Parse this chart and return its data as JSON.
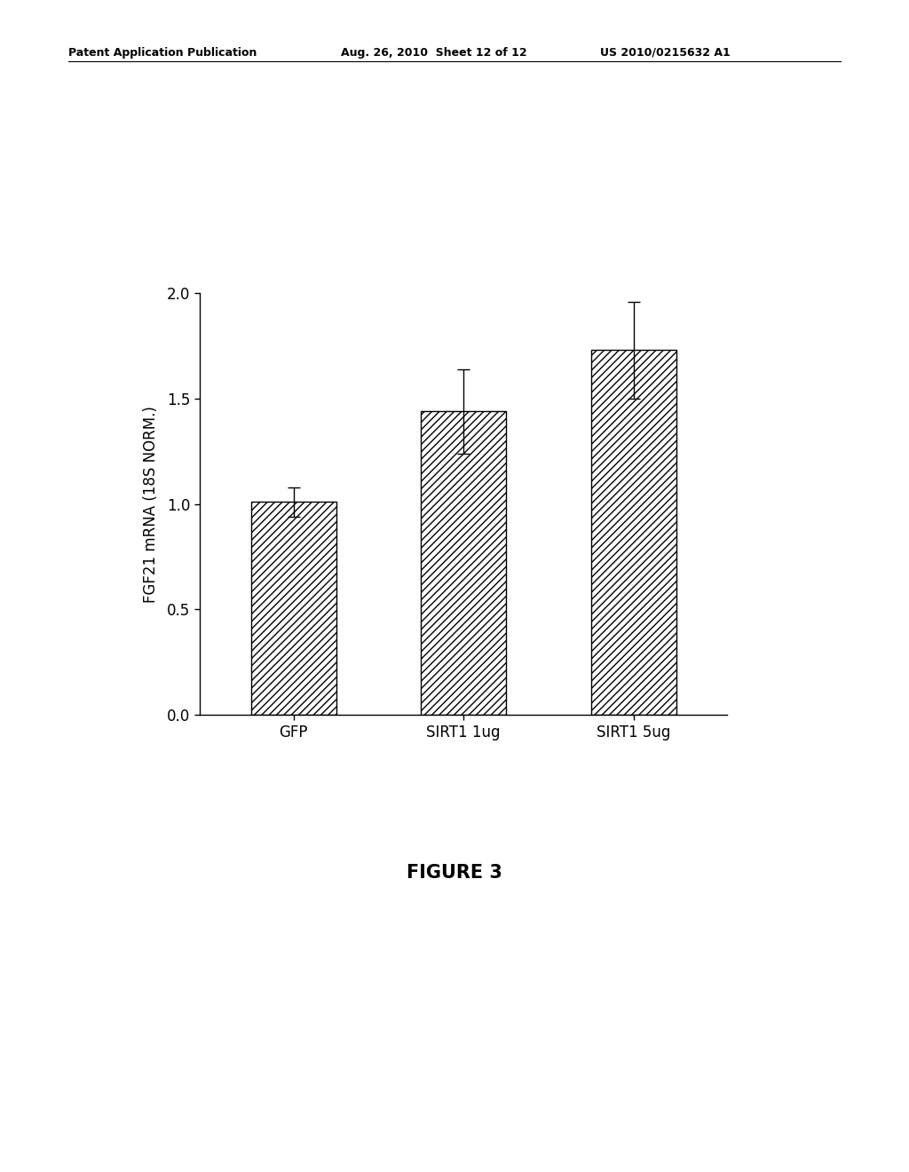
{
  "categories": [
    "GFP",
    "SIRT1 1ug",
    "SIRT1 5ug"
  ],
  "values": [
    1.01,
    1.44,
    1.73
  ],
  "errors": [
    0.07,
    0.2,
    0.23
  ],
  "ylabel": "FGF21 mRNA (18S NORM.)",
  "ylim": [
    0.0,
    2.0
  ],
  "yticks": [
    0.0,
    0.5,
    1.0,
    1.5,
    2.0
  ],
  "figure_caption": "FIGURE 3",
  "header_left": "Patent Application Publication",
  "header_mid": "Aug. 26, 2010  Sheet 12 of 12",
  "header_right": "US 2010/0215632 A1",
  "bar_color": "#ffffff",
  "hatch": "////",
  "bar_width": 0.5,
  "bar_edge_color": "#000000",
  "error_color": "#000000",
  "background_color": "#ffffff",
  "header_fontsize": 9,
  "tick_fontsize": 12,
  "ylabel_fontsize": 12,
  "caption_fontsize": 15
}
